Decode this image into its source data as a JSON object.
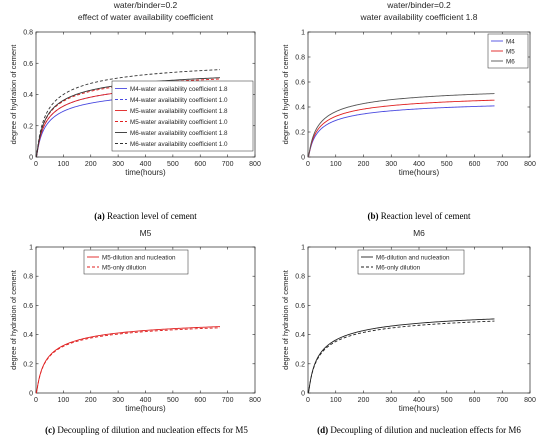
{
  "panels": [
    {
      "id": "a",
      "title_lines": [
        "water/binder=0.2",
        "effect of water availability coefficient"
      ],
      "caption_letter": "(a)",
      "caption_text": " Reaction level of cement",
      "chart_data": {
        "type": "line",
        "xlabel": "time(hours)",
        "ylabel": "degree of hydration of cement",
        "xlim": [
          0,
          800
        ],
        "ylim": [
          0,
          0.8
        ],
        "xticks": [
          0,
          100,
          200,
          300,
          400,
          500,
          600,
          700,
          800
        ],
        "yticks": [
          0,
          0.2,
          0.4,
          0.6,
          0.8
        ],
        "grid": false,
        "legend_position": "right-middle",
        "series": [
          {
            "name": "M4-water availability coefficient 1.8",
            "color": "#4a4ae0",
            "dash": "solid",
            "ult": 0.49,
            "k": 0.3,
            "x_end": 672
          },
          {
            "name": "M4-water availability coefficient 1.0",
            "color": "#4a4ae0",
            "dash": "dashed",
            "ult": 0.545,
            "k": 0.3,
            "x_end": 672
          },
          {
            "name": "M5-water availability coefficient 1.8",
            "color": "#e02020",
            "dash": "solid",
            "ult": 0.545,
            "k": 0.3,
            "x_end": 672
          },
          {
            "name": "M5-water availability coefficient 1.0",
            "color": "#e02020",
            "dash": "dashed",
            "ult": 0.598,
            "k": 0.3,
            "x_end": 672
          },
          {
            "name": "M6-water availability coefficient 1.8",
            "color": "#333333",
            "dash": "solid",
            "ult": 0.608,
            "k": 0.3,
            "x_end": 672
          },
          {
            "name": "M6-water availability coefficient 1.0",
            "color": "#333333",
            "dash": "dashed",
            "ult": 0.67,
            "k": 0.3,
            "x_end": 672
          }
        ]
      }
    },
    {
      "id": "b",
      "title_lines": [
        "water/binder=0.2",
        "water availability coefficient 1.8"
      ],
      "caption_letter": "(b)",
      "caption_text": " Reaction level of cement",
      "chart_data": {
        "type": "line",
        "xlabel": "time(hours)",
        "ylabel": "degree of hydration of cement",
        "xlim": [
          0,
          800
        ],
        "ylim": [
          0,
          1
        ],
        "xticks": [
          0,
          100,
          200,
          300,
          400,
          500,
          600,
          700,
          800
        ],
        "yticks": [
          0,
          0.2,
          0.4,
          0.6,
          0.8,
          1
        ],
        "grid": false,
        "legend_position": "top-right",
        "series": [
          {
            "name": "M4",
            "color": "#4a4ae0",
            "dash": "solid",
            "ult": 0.49,
            "k": 0.3,
            "x_end": 672
          },
          {
            "name": "M5",
            "color": "#e02020",
            "dash": "solid",
            "ult": 0.545,
            "k": 0.3,
            "x_end": 672
          },
          {
            "name": "M6",
            "color": "#555555",
            "dash": "solid",
            "ult": 0.608,
            "k": 0.3,
            "x_end": 672
          }
        ]
      }
    },
    {
      "id": "c",
      "title_lines": [
        "M5"
      ],
      "caption_letter": "(c)",
      "caption_text": " Decoupling of dilution and nucleation effects for M5",
      "chart_data": {
        "type": "line",
        "xlabel": "time(hours)",
        "ylabel": "degree of hydration of cement",
        "xlim": [
          0,
          800
        ],
        "ylim": [
          0,
          1
        ],
        "xticks": [
          0,
          100,
          200,
          300,
          400,
          500,
          600,
          700,
          800
        ],
        "yticks": [
          0,
          0.2,
          0.4,
          0.6,
          0.8,
          1
        ],
        "grid": false,
        "legend_position": "top-center",
        "series": [
          {
            "name": "M5-dilution and nucleation",
            "color": "#e02020",
            "dash": "solid",
            "ult": 0.545,
            "k": 0.3,
            "x_end": 672
          },
          {
            "name": "M5-only dilution",
            "color": "#e02020",
            "dash": "dashed",
            "ult": 0.535,
            "k": 0.38,
            "x_end": 672
          }
        ]
      }
    },
    {
      "id": "d",
      "title_lines": [
        "M6"
      ],
      "caption_letter": "(d)",
      "caption_text": " Decoupling of dilution and nucleation effects for M6",
      "chart_data": {
        "type": "line",
        "xlabel": "time(hours)",
        "ylabel": "degree of hydration of cement",
        "xlim": [
          0,
          800
        ],
        "ylim": [
          0,
          1
        ],
        "xticks": [
          0,
          100,
          200,
          300,
          400,
          500,
          600,
          700,
          800
        ],
        "yticks": [
          0,
          0.2,
          0.4,
          0.6,
          0.8,
          1
        ],
        "grid": false,
        "legend_position": "top-center",
        "series": [
          {
            "name": "M6-dilution and nucleation",
            "color": "#222222",
            "dash": "solid",
            "ult": 0.608,
            "k": 0.3,
            "x_end": 672
          },
          {
            "name": "M6-only dilution",
            "color": "#222222",
            "dash": "dashed",
            "ult": 0.59,
            "k": 0.4,
            "x_end": 672
          }
        ]
      }
    }
  ]
}
